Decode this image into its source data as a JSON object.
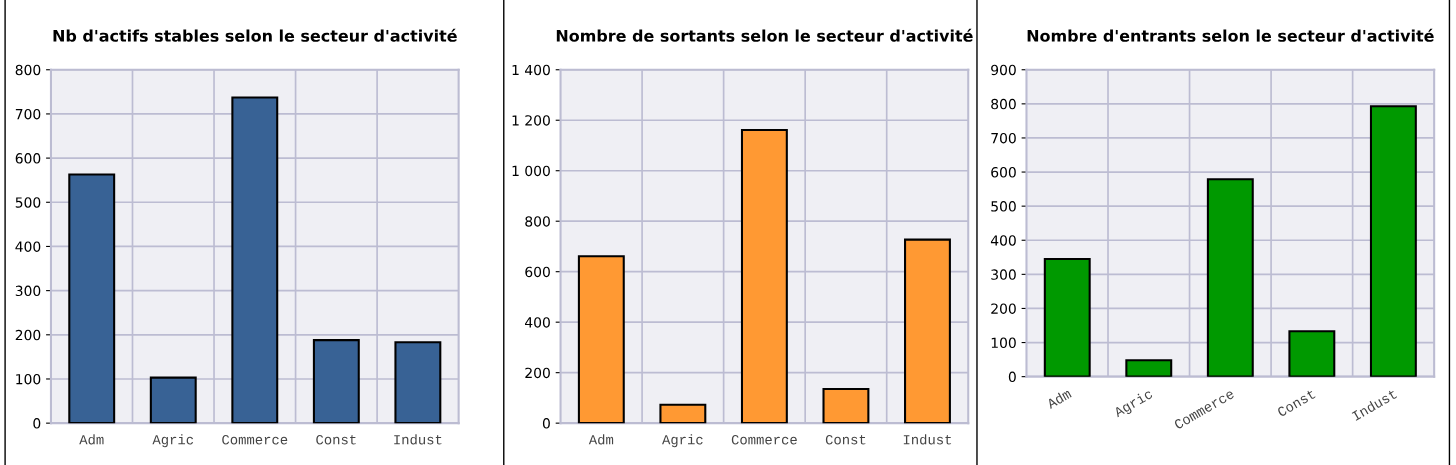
{
  "chart_data": [
    {
      "type": "bar",
      "title": "Nb d'actifs stables selon le secteur d'activité",
      "categories": [
        "Adm",
        "Agric",
        "Commerce",
        "Const",
        "Indust"
      ],
      "values": [
        563,
        103,
        737,
        188,
        183
      ],
      "color": "#386295",
      "ylim": [
        0,
        800
      ],
      "yticks": [
        0,
        100,
        200,
        300,
        400,
        500,
        600,
        700,
        800
      ],
      "grid": true
    },
    {
      "type": "bar",
      "title": "Nombre de sortants selon le secteur d'activité",
      "categories": [
        "Adm",
        "Agric",
        "Commerce",
        "Const",
        "Indust"
      ],
      "values": [
        661,
        73,
        1161,
        135,
        727
      ],
      "color": "#ff9933",
      "ylim": [
        0,
        1400
      ],
      "yticks": [
        0,
        200,
        400,
        600,
        800,
        {
          "value": 1000,
          "label": "1 000"
        },
        {
          "value": 1200,
          "label": "1 200"
        },
        {
          "value": 1400,
          "label": "1 400"
        }
      ],
      "grid": true
    },
    {
      "type": "bar",
      "title": "Nombre d'entrants selon le secteur d'activité",
      "categories": [
        "Adm",
        "Agric",
        "Commerce",
        "Const",
        "Indust"
      ],
      "values": [
        345,
        48,
        579,
        133,
        793
      ],
      "color": "#009900",
      "ylim": [
        0,
        900
      ],
      "yticks": [
        0,
        100,
        200,
        300,
        400,
        500,
        600,
        700,
        800,
        900
      ],
      "grid": true
    }
  ]
}
